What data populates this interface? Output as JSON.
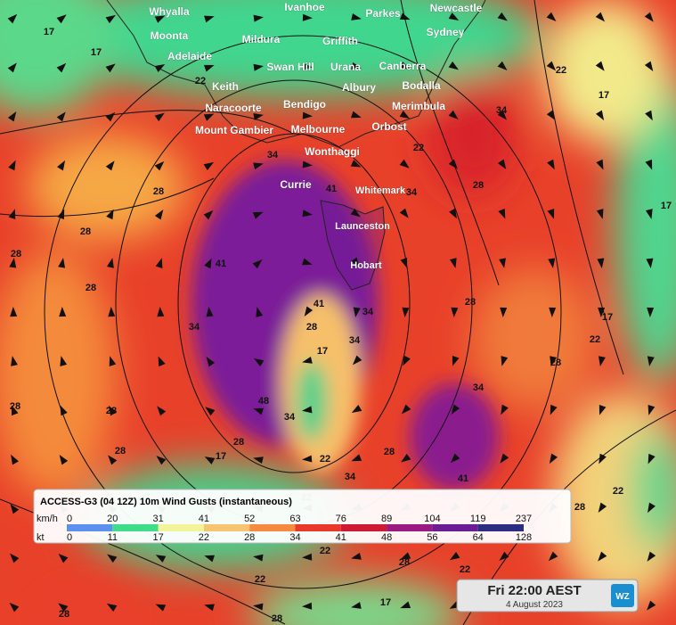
{
  "map_title": "ACCESS-G3 (04 12Z) 10m Wind Gusts (instantaneous)",
  "places": [
    "Whyalla",
    "Ivanhoe",
    "Parkes",
    "Newcastle",
    "Moonta",
    "Mildura",
    "Griffith",
    "Sydney",
    "Adelaide",
    "Swan Hill",
    "Urana",
    "Canberra",
    "Keith",
    "Albury",
    "Bodalla",
    "Naracoorte",
    "Bendigo",
    "Merimbula",
    "Mount Gambier",
    "Melbourne",
    "Orbost",
    "Wonthaggi",
    "Currie",
    "Whitemark",
    "Launceston",
    "Hobart"
  ],
  "contour_labels": [
    17,
    17,
    22,
    34,
    28,
    28,
    28,
    28,
    34,
    41,
    41,
    34,
    28,
    22,
    34,
    22,
    17,
    17,
    17,
    22,
    28,
    28,
    34,
    28,
    22,
    34,
    41,
    22,
    48,
    34,
    17,
    28,
    41,
    34,
    34,
    28,
    17,
    28,
    28,
    28,
    22,
    22,
    17,
    28,
    28,
    22,
    28,
    28,
    22
  ],
  "legend": {
    "units": [
      "km/h",
      "kt"
    ],
    "kmh": [
      0,
      20,
      31,
      41,
      52,
      63,
      76,
      89,
      104,
      119,
      237
    ],
    "kt": [
      0,
      11,
      17,
      22,
      28,
      34,
      41,
      48,
      56,
      64,
      128
    ],
    "colors": [
      "#5b8ff0",
      "#3fdc8a",
      "#f3f39a",
      "#f7c572",
      "#f58a40",
      "#e8392a",
      "#cf1a33",
      "#9a1a82",
      "#6b1c94",
      "#2c2c82"
    ]
  },
  "timestamp": {
    "time": "Fri 22:00 AEST",
    "date": "4 August 2023",
    "logo": "WZ"
  }
}
